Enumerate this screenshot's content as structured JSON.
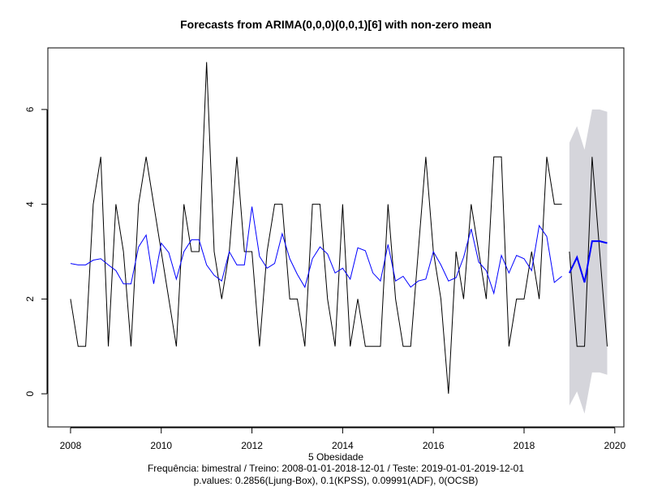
{
  "chart_data": {
    "type": "line",
    "title": "Forecasts from ARIMA(0,0,0)(0,0,1)[6] with non-zero mean",
    "xlabel": "5 Obesidade",
    "ylabel": "",
    "caption_lines": [
      "Frequência: bimestral / Treino: 2008-01-01-2018-12-01 / Teste: 2019-01-01-2019-12-01",
      "p.values: 0.2856(Ljung-Box), 0.1(KPSS), 0.09991(ADF), 0(OCSB)"
    ],
    "xlim": [
      2007.5,
      2020.2
    ],
    "ylim": [
      -0.7,
      7.3
    ],
    "x_ticks": [
      2008,
      2010,
      2012,
      2014,
      2016,
      2018,
      2020
    ],
    "y_ticks": [
      0,
      2,
      4,
      6
    ],
    "grid": false,
    "legend": "none",
    "frequency": 6,
    "train_start": 2008.0,
    "observed_train": [
      2,
      1,
      1,
      4,
      5,
      1,
      4,
      3,
      1,
      4,
      5,
      4,
      3,
      2,
      1,
      4,
      3,
      3,
      7,
      3,
      2,
      3,
      5,
      3,
      3,
      1,
      3,
      4,
      4,
      2,
      2,
      1,
      4,
      4,
      2,
      1,
      4,
      1,
      2,
      1,
      1,
      1,
      4,
      2,
      1,
      1,
      3,
      5,
      3,
      2,
      0,
      3,
      2,
      4,
      3,
      2,
      5,
      5,
      1,
      2,
      2,
      3,
      2,
      5,
      4,
      4
    ],
    "fitted": [
      2.75,
      2.72,
      2.72,
      2.82,
      2.85,
      2.72,
      2.6,
      2.32,
      2.32,
      3.1,
      3.35,
      2.32,
      3.18,
      2.98,
      2.42,
      3.0,
      3.25,
      3.25,
      2.72,
      2.5,
      2.38,
      3.0,
      2.72,
      2.72,
      3.95,
      2.9,
      2.65,
      2.75,
      3.38,
      2.85,
      2.52,
      2.25,
      2.85,
      3.1,
      2.95,
      2.55,
      2.65,
      2.42,
      3.08,
      3.02,
      2.55,
      2.38,
      3.15,
      2.38,
      2.48,
      2.25,
      2.38,
      2.42,
      3.0,
      2.72,
      2.38,
      2.45,
      2.88,
      3.48,
      2.78,
      2.6,
      2.12,
      2.92,
      2.55,
      2.92,
      2.85,
      2.6,
      3.55,
      3.32,
      2.35,
      2.48
    ],
    "test_start": 2019.0,
    "observed_test": [
      3,
      1,
      1,
      5,
      3,
      1
    ],
    "forecast": [
      2.55,
      2.88,
      2.35,
      3.22,
      3.22,
      3.18
    ],
    "pi_upper": [
      5.3,
      5.65,
      5.15,
      6.0,
      6.0,
      5.95
    ],
    "pi_lower": [
      -0.25,
      0.05,
      -0.42,
      0.45,
      0.45,
      0.4
    ],
    "colors": {
      "observed": "#000000",
      "fitted": "#0000ff",
      "forecast": "#0000ff",
      "interval": "#d5d5db",
      "axis": "#000000"
    }
  }
}
